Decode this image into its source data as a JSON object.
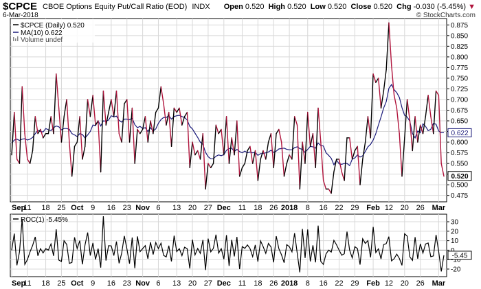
{
  "header": {
    "symbol": "$CPCE",
    "description": "CBOE Options Equity Put/Call Ratio (EOD)",
    "exchange": "INDX",
    "date": "6-Mar-2018",
    "open_label": "Open",
    "open": "0.520",
    "high_label": "High",
    "high": "0.520",
    "low_label": "Low",
    "low": "0.520",
    "close_label": "Close",
    "close": "0.520",
    "chg_label": "Chg",
    "chg": "-0.030 (-5.45%)",
    "brand": "© StockCharts.com"
  },
  "legend": {
    "price": "$CPCE (Daily) 0.520",
    "ma": "MA(10) 0.622",
    "volume": "Volume undef",
    "roc": "ROC(1) -5.45%"
  },
  "badges": {
    "last": "0.520",
    "ma": "0.622",
    "roc": "-5.45"
  },
  "colors": {
    "up": "#000000",
    "down": "#b0143c",
    "ma": "#1a1a7a",
    "grid": "#d8d8d8",
    "panel_bg": "#ffffff"
  },
  "chart_data": [
    {
      "type": "line",
      "title": "$CPCE CBOE Options Equity Put/Call Ratio (EOD)",
      "x_tick_labels": [
        "Sep",
        "11",
        "18",
        "25",
        "Oct",
        "9",
        "16",
        "23",
        "Nov",
        "6",
        "13",
        "20",
        "27",
        "Dec",
        "11",
        "18",
        "26",
        "2018",
        "8",
        "16",
        "22",
        "29",
        "Feb",
        "12",
        "20",
        "26",
        "Mar"
      ],
      "x_tick_bold": [
        "Sep",
        "Oct",
        "Nov",
        "Dec",
        "2018",
        "Feb",
        "Mar"
      ],
      "y_ticks": [
        "0.475",
        "0.500",
        "0.525",
        "0.550",
        "0.575",
        "0.600",
        "0.625",
        "0.650",
        "0.675",
        "0.700",
        "0.725",
        "0.750",
        "0.775",
        "0.800",
        "0.825",
        "0.850",
        "0.875"
      ],
      "ylim": [
        0.46,
        0.89
      ],
      "series": [
        {
          "name": "$CPCE (Daily)",
          "values": [
            0.57,
            0.67,
            0.56,
            0.55,
            0.73,
            0.62,
            0.56,
            0.55,
            0.58,
            0.66,
            0.62,
            0.63,
            0.61,
            0.62,
            0.62,
            0.66,
            0.62,
            0.76,
            0.68,
            0.6,
            0.66,
            0.7,
            0.6,
            0.52,
            0.59,
            0.6,
            0.66,
            0.56,
            0.59,
            0.7,
            0.66,
            0.71,
            0.64,
            0.65,
            0.53,
            0.72,
            0.64,
            0.67,
            0.7,
            0.66,
            0.72,
            0.62,
            0.6,
            0.69,
            0.7,
            0.6,
            0.68,
            0.55,
            0.63,
            0.62,
            0.63,
            0.66,
            0.6,
            0.65,
            0.62,
            0.67,
            0.68,
            0.73,
            0.69,
            0.64,
            0.67,
            0.59,
            0.68,
            0.67,
            0.68,
            0.64,
            0.66,
            0.67,
            0.54,
            0.6,
            0.57,
            0.58,
            0.56,
            0.62,
            0.49,
            0.55,
            0.54,
            0.55,
            0.64,
            0.62,
            0.63,
            0.57,
            0.66,
            0.55,
            0.61,
            0.57,
            0.65,
            0.52,
            0.54,
            0.55,
            0.58,
            0.59,
            0.55,
            0.58,
            0.51,
            0.56,
            0.58,
            0.56,
            0.6,
            0.62,
            0.54,
            0.62,
            0.63,
            0.6,
            0.52,
            0.55,
            0.57,
            0.56,
            0.66,
            0.64,
            0.49,
            0.6,
            0.55,
            0.67,
            0.59,
            0.62,
            0.54,
            0.68,
            0.6,
            0.51,
            0.49,
            0.49,
            0.48,
            0.53,
            0.56,
            0.56,
            0.53,
            0.51,
            0.61,
            0.61,
            0.56,
            0.58,
            0.59,
            0.5,
            0.56,
            0.6,
            0.66,
            0.61,
            0.76,
            0.74,
            0.75,
            0.68,
            0.72,
            0.77,
            0.88,
            0.78,
            0.71,
            0.68,
            0.62,
            0.52,
            0.61,
            0.7,
            0.65,
            0.58,
            0.66,
            0.6,
            0.64,
            0.62,
            0.66,
            0.71,
            0.66,
            0.62,
            0.72,
            0.71,
            0.55,
            0.52
          ]
        },
        {
          "name": "MA(10)",
          "values": [
            0.598,
            0.605,
            0.607,
            0.604,
            0.607,
            0.608,
            0.605,
            0.607,
            0.611,
            0.62,
            0.628,
            0.625,
            0.624,
            0.632,
            0.629,
            0.627,
            0.634,
            0.638,
            0.636,
            0.629,
            0.632,
            0.632,
            0.63,
            0.62,
            0.617,
            0.613,
            0.62,
            0.618,
            0.61,
            0.617,
            0.625,
            0.64,
            0.639,
            0.65,
            0.638,
            0.65,
            0.649,
            0.652,
            0.662,
            0.659,
            0.661,
            0.651,
            0.647,
            0.654,
            0.654,
            0.653,
            0.656,
            0.641,
            0.634,
            0.637,
            0.632,
            0.634,
            0.625,
            0.634,
            0.626,
            0.631,
            0.644,
            0.653,
            0.658,
            0.658,
            0.662,
            0.654,
            0.66,
            0.662,
            0.663,
            0.66,
            0.658,
            0.652,
            0.637,
            0.631,
            0.621,
            0.611,
            0.6,
            0.595,
            0.576,
            0.566,
            0.561,
            0.561,
            0.567,
            0.57,
            0.568,
            0.571,
            0.581,
            0.585,
            0.586,
            0.578,
            0.583,
            0.578,
            0.575,
            0.579,
            0.575,
            0.577,
            0.575,
            0.576,
            0.569,
            0.573,
            0.573,
            0.575,
            0.577,
            0.581,
            0.576,
            0.579,
            0.584,
            0.585,
            0.586,
            0.583,
            0.582,
            0.582,
            0.587,
            0.589,
            0.585,
            0.583,
            0.576,
            0.583,
            0.59,
            0.589,
            0.586,
            0.598,
            0.592,
            0.591,
            0.575,
            0.569,
            0.562,
            0.547,
            0.558,
            0.549,
            0.548,
            0.55,
            0.55,
            0.545,
            0.56,
            0.563,
            0.57,
            0.565,
            0.568,
            0.578,
            0.589,
            0.595,
            0.605,
            0.62,
            0.64,
            0.659,
            0.68,
            0.695,
            0.726,
            0.735,
            0.723,
            0.716,
            0.705,
            0.681,
            0.663,
            0.659,
            0.649,
            0.62,
            0.61,
            0.626,
            0.622,
            0.643,
            0.637,
            0.627,
            0.63,
            0.644,
            0.642,
            0.626,
            0.622,
            0.622
          ]
        }
      ]
    },
    {
      "type": "line",
      "title": "ROC(1)",
      "y_ticks": [
        "30",
        "20",
        "10",
        "0",
        "-10",
        "-20"
      ],
      "ylim": [
        -28,
        38
      ],
      "series": [
        {
          "name": "ROC(1)",
          "values": [
            0,
            17.5,
            -16,
            -1.8,
            33,
            -15,
            -10,
            -1.8,
            5,
            14,
            -6,
            1.6,
            -3,
            1.6,
            0,
            6.5,
            -6,
            22,
            -10.5,
            -12,
            10,
            6,
            -14,
            -13,
            13.5,
            1.7,
            10,
            -15,
            5.4,
            18.6,
            -5.7,
            7.6,
            -9.9,
            1.6,
            -18.5,
            35.8,
            -11,
            4.7,
            4.5,
            -5.7,
            9.1,
            -13.9,
            -3.2,
            15,
            1.4,
            -14.3,
            13.3,
            -19.1,
            14.5,
            -1.6,
            1.6,
            4.8,
            -9.1,
            8.3,
            -4.6,
            8.1,
            1.5,
            7.4,
            -5.5,
            -7.2,
            4.7,
            -11.9,
            15.3,
            -1.5,
            1.5,
            -5.9,
            3.1,
            1.5,
            -19.4,
            11.1,
            -5,
            1.8,
            -3.4,
            10.7,
            -21,
            12.2,
            -1.8,
            1.9,
            16.4,
            -3.1,
            1.6,
            -9.5,
            15.8,
            -16.7,
            10.9,
            -6.6,
            14,
            -20,
            3.8,
            1.9,
            5.5,
            1.7,
            -6.8,
            5.5,
            -12.1,
            9.8,
            3.6,
            -3.4,
            7.1,
            3.3,
            -12.9,
            14.8,
            1.6,
            -4.8,
            -13.3,
            5.8,
            3.6,
            -1.8,
            17.9,
            -3,
            -23.4,
            22.4,
            -8.3,
            21.8,
            -11.9,
            5.1,
            -12.9,
            25.9,
            -11.8,
            -15,
            -3.9,
            0,
            -2,
            10.4,
            5.7,
            0,
            -5.4,
            -3.8,
            19.6,
            0,
            -8.2,
            3.6,
            1.7,
            -15.3,
            12,
            7.1,
            10,
            -7.6,
            24.6,
            -2.6,
            1.4,
            -9.3,
            5.9,
            6.9,
            14.3,
            -11.4,
            -9,
            -4.2,
            -8.8,
            -16.1,
            17.3,
            14.8,
            -7.1,
            -10.8,
            13.8,
            -9.1,
            6.7,
            -3.1,
            6.5,
            7.6,
            -7,
            -6.1,
            16.1,
            -1.4,
            -22.5,
            -5.45
          ]
        }
      ]
    }
  ]
}
